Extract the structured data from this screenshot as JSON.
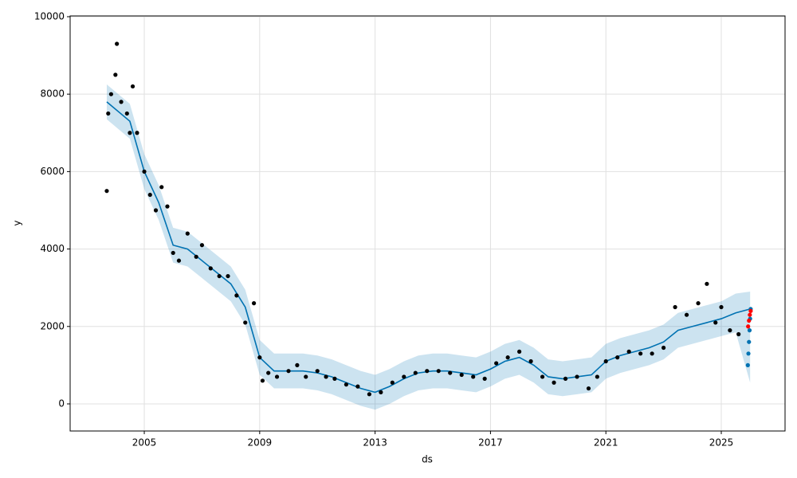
{
  "chart_data": {
    "type": "line",
    "xlabel": "ds",
    "ylabel": "y",
    "xlim": [
      2002.43,
      2027.21
    ],
    "ylim": [
      -700,
      10020
    ],
    "xticks": [
      2005,
      2009,
      2013,
      2017,
      2021,
      2025
    ],
    "yticks": [
      0,
      2000,
      4000,
      6000,
      8000,
      10000
    ],
    "grid": true,
    "series": [
      {
        "kind": "band",
        "color": "#0072B2",
        "x": [
          2003.7,
          2004.5,
          2005.0,
          2005.5,
          2006.0,
          2006.5,
          2007.0,
          2007.5,
          2008.0,
          2008.5,
          2009.0,
          2009.5,
          2010.0,
          2010.5,
          2011.0,
          2011.5,
          2012.0,
          2012.5,
          2013.0,
          2013.5,
          2014.0,
          2014.5,
          2015.0,
          2015.5,
          2016.0,
          2016.5,
          2017.0,
          2017.5,
          2018.0,
          2018.5,
          2019.0,
          2019.5,
          2020.0,
          2020.5,
          2021.0,
          2021.5,
          2022.0,
          2022.5,
          2023.0,
          2023.5,
          2024.0,
          2024.5,
          2025.0,
          2025.5,
          2026.0
        ],
        "lower": [
          7350,
          6850,
          5550,
          4750,
          3650,
          3550,
          3250,
          2950,
          2650,
          2050,
          750,
          400,
          400,
          400,
          350,
          250,
          100,
          -50,
          -150,
          0,
          200,
          350,
          400,
          400,
          350,
          300,
          450,
          650,
          750,
          550,
          250,
          200,
          250,
          300,
          650,
          800,
          900,
          1000,
          1150,
          1450,
          1550,
          1650,
          1750,
          1850,
          550
        ],
        "upper": [
          8250,
          7750,
          6450,
          5650,
          4550,
          4450,
          4150,
          3850,
          3550,
          2950,
          1650,
          1300,
          1300,
          1300,
          1250,
          1150,
          1000,
          850,
          750,
          900,
          1100,
          1250,
          1300,
          1300,
          1250,
          1200,
          1350,
          1550,
          1650,
          1450,
          1150,
          1100,
          1150,
          1200,
          1550,
          1700,
          1800,
          1900,
          2050,
          2350,
          2450,
          2550,
          2650,
          2850,
          2900
        ]
      },
      {
        "kind": "line",
        "color": "#0072B2",
        "x": [
          2003.7,
          2004.5,
          2005.0,
          2005.5,
          2006.0,
          2006.5,
          2007.0,
          2007.5,
          2008.0,
          2008.5,
          2009.0,
          2009.5,
          2010.0,
          2010.5,
          2011.0,
          2011.5,
          2012.0,
          2012.5,
          2013.0,
          2013.5,
          2014.0,
          2014.5,
          2015.0,
          2015.5,
          2016.0,
          2016.5,
          2017.0,
          2017.5,
          2018.0,
          2018.5,
          2019.0,
          2019.5,
          2020.0,
          2020.5,
          2021.0,
          2021.5,
          2022.0,
          2022.5,
          2023.0,
          2023.5,
          2024.0,
          2024.5,
          2025.0,
          2025.5,
          2026.0
        ],
        "values": [
          7800,
          7300,
          6000,
          5200,
          4100,
          4000,
          3700,
          3400,
          3100,
          2500,
          1200,
          850,
          850,
          850,
          800,
          700,
          550,
          400,
          300,
          450,
          650,
          800,
          850,
          850,
          800,
          750,
          900,
          1100,
          1200,
          1000,
          700,
          650,
          700,
          750,
          1100,
          1250,
          1350,
          1450,
          1600,
          1900,
          2000,
          2100,
          2200,
          2350,
          2450
        ]
      },
      {
        "kind": "points",
        "color": "#000000",
        "x": [
          2003.7,
          2003.75,
          2003.85,
          2004.0,
          2004.05,
          2004.2,
          2004.4,
          2004.5,
          2004.6,
          2004.75,
          2005.0,
          2005.2,
          2005.4,
          2005.6,
          2005.8,
          2006.0,
          2006.2,
          2006.5,
          2006.8,
          2007.0,
          2007.3,
          2007.6,
          2007.9,
          2008.2,
          2008.5,
          2008.8,
          2009.0,
          2009.1,
          2009.3,
          2009.6,
          2010.0,
          2010.3,
          2010.6,
          2011.0,
          2011.3,
          2011.6,
          2012.0,
          2012.4,
          2012.8,
          2013.2,
          2013.6,
          2014.0,
          2014.4,
          2014.8,
          2015.2,
          2015.6,
          2016.0,
          2016.4,
          2016.8,
          2017.2,
          2017.6,
          2018.0,
          2018.4,
          2018.8,
          2019.2,
          2019.6,
          2020.0,
          2020.4,
          2020.7,
          2021.0,
          2021.4,
          2021.8,
          2022.2,
          2022.6,
          2023.0,
          2023.4,
          2023.8,
          2024.2,
          2024.5,
          2024.8,
          2025.0,
          2025.3,
          2025.6
        ],
        "values": [
          5500,
          7500,
          8000,
          8500,
          9300,
          7800,
          7500,
          7000,
          8200,
          7000,
          6000,
          5400,
          5000,
          5600,
          5100,
          3900,
          3700,
          4400,
          3800,
          4100,
          3500,
          3300,
          3300,
          2800,
          2100,
          2600,
          1200,
          600,
          800,
          700,
          850,
          1000,
          700,
          850,
          700,
          650,
          500,
          450,
          250,
          300,
          550,
          700,
          800,
          850,
          850,
          800,
          750,
          700,
          650,
          1050,
          1200,
          1350,
          1100,
          700,
          550,
          650,
          700,
          400,
          700,
          1100,
          1200,
          1350,
          1300,
          1300,
          1450,
          2500,
          2300,
          2600,
          3100,
          2100,
          2500,
          1900,
          1800
        ]
      },
      {
        "kind": "points",
        "color": "#0072B2",
        "x": [
          2025.92,
          2025.94,
          2025.96,
          2025.98,
          2026.0,
          2026.02
        ],
        "values": [
          1000,
          1300,
          1600,
          1900,
          2200,
          2450
        ]
      },
      {
        "kind": "points",
        "color": "#ff0000",
        "x": [
          2025.93,
          2025.96,
          2025.99,
          2026.02
        ],
        "values": [
          2000,
          2150,
          2300,
          2400
        ]
      }
    ]
  }
}
